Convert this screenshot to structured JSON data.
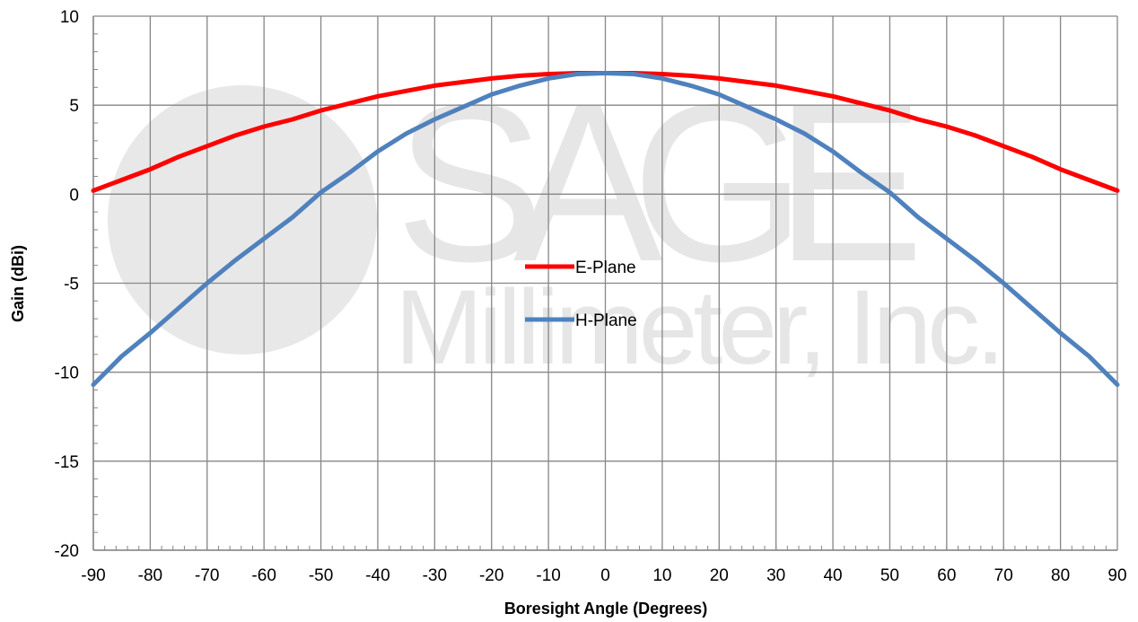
{
  "watermark": {
    "line1": "SAGE",
    "line2": "Millimeter, Inc."
  },
  "chart_data": {
    "type": "line",
    "title": "",
    "xlabel": "Boresight Angle (Degrees)",
    "ylabel": "Gain (dBi)",
    "xlim": [
      -90,
      90
    ],
    "ylim": [
      -20,
      10
    ],
    "xticks": [
      -90,
      -80,
      -70,
      -60,
      -50,
      -40,
      -30,
      -20,
      -10,
      0,
      10,
      20,
      30,
      40,
      50,
      60,
      70,
      80,
      90
    ],
    "yticks": [
      -20,
      -15,
      -10,
      -5,
      0,
      5,
      10
    ],
    "grid": true,
    "legend_position": "center",
    "x": [
      -90,
      -85,
      -80,
      -75,
      -70,
      -65,
      -60,
      -55,
      -50,
      -45,
      -40,
      -35,
      -30,
      -25,
      -20,
      -15,
      -10,
      -5,
      0,
      5,
      10,
      15,
      20,
      25,
      30,
      35,
      40,
      45,
      50,
      55,
      60,
      65,
      70,
      75,
      80,
      85,
      90
    ],
    "series": [
      {
        "name": "E-Plane",
        "color": "#ff0000",
        "values": [
          0.2,
          0.8,
          1.4,
          2.1,
          2.7,
          3.3,
          3.8,
          4.2,
          4.7,
          5.1,
          5.5,
          5.8,
          6.1,
          6.3,
          6.5,
          6.65,
          6.75,
          6.8,
          6.8,
          6.8,
          6.75,
          6.65,
          6.5,
          6.3,
          6.1,
          5.8,
          5.5,
          5.1,
          4.7,
          4.2,
          3.8,
          3.3,
          2.7,
          2.1,
          1.4,
          0.8,
          0.2
        ]
      },
      {
        "name": "H-Plane",
        "color": "#4f81bd",
        "values": [
          -10.7,
          -9.1,
          -7.8,
          -6.4,
          -5.0,
          -3.7,
          -2.5,
          -1.3,
          0.1,
          1.2,
          2.4,
          3.4,
          4.2,
          4.9,
          5.6,
          6.1,
          6.5,
          6.75,
          6.8,
          6.75,
          6.5,
          6.1,
          5.6,
          4.9,
          4.2,
          3.4,
          2.4,
          1.2,
          0.1,
          -1.3,
          -2.5,
          -3.7,
          -5.0,
          -6.4,
          -7.8,
          -9.1,
          -10.7
        ]
      }
    ]
  }
}
